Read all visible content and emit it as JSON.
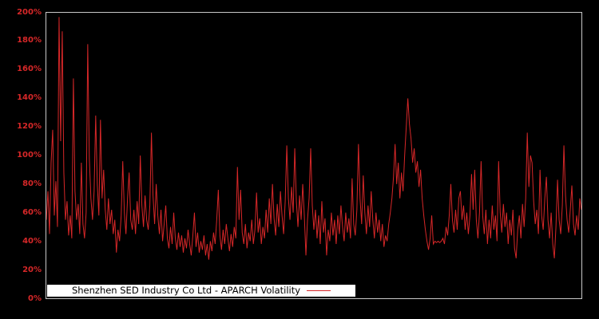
{
  "figure": {
    "background_color": "#000000",
    "axis_border_color": "#c8c8c8"
  },
  "legend": {
    "label": "Shenzhen SED Industry Co Ltd - APARCH Volatility",
    "line_sample_color": "#d62728",
    "background_color": "#ffffff"
  },
  "chart_data": {
    "type": "line",
    "title": "",
    "xlabel": "",
    "ylabel": "",
    "grid": false,
    "legend_position": "bottom-center-inside",
    "line_color": "#d62728",
    "tick_label_color": "#d62728",
    "ylim": [
      0,
      200
    ],
    "yticks": [
      "0%",
      "20%",
      "40%",
      "60%",
      "80%",
      "100%",
      "120%",
      "140%",
      "160%",
      "180%",
      "200%"
    ],
    "ytick_values": [
      0,
      20,
      40,
      60,
      80,
      100,
      120,
      140,
      160,
      180,
      200
    ],
    "x_axis_ticks": "none",
    "series": [
      {
        "name": "Shenzhen SED Industry Co Ltd - APARCH Volatility",
        "unit": "percent",
        "values": [
          55,
          75,
          45,
          95,
          118,
          58,
          82,
          50,
          197,
          110,
          187,
          88,
          55,
          68,
          44,
          58,
          42,
          154,
          75,
          55,
          66,
          45,
          95,
          52,
          42,
          60,
          178,
          98,
          70,
          55,
          75,
          128,
          80,
          58,
          125,
          70,
          90,
          62,
          48,
          70,
          52,
          62,
          45,
          55,
          32,
          48,
          40,
          58,
          96,
          60,
          45,
          70,
          88,
          55,
          48,
          62,
          45,
          68,
          52,
          100,
          65,
          50,
          72,
          55,
          48,
          65,
          116,
          72,
          52,
          80,
          58,
          45,
          62,
          40,
          52,
          65,
          42,
          35,
          50,
          38,
          60,
          42,
          34,
          46,
          36,
          44,
          32,
          42,
          35,
          48,
          38,
          30,
          44,
          60,
          36,
          46,
          32,
          40,
          34,
          44,
          30,
          38,
          27,
          40,
          33,
          46,
          38,
          55,
          76,
          44,
          34,
          48,
          38,
          52,
          42,
          33,
          45,
          36,
          50,
          42,
          92,
          55,
          76,
          46,
          38,
          52,
          35,
          46,
          40,
          55,
          38,
          48,
          74,
          46,
          56,
          38,
          50,
          42,
          62,
          46,
          70,
          52,
          80,
          56,
          44,
          66,
          50,
          75,
          58,
          45,
          68,
          107,
          70,
          55,
          78,
          60,
          105,
          68,
          50,
          72,
          55,
          80,
          58,
          30,
          55,
          70,
          105,
          65,
          48,
          62,
          42,
          58,
          38,
          68,
          46,
          56,
          30,
          48,
          40,
          60,
          44,
          55,
          38,
          58,
          45,
          65,
          50,
          40,
          60,
          46,
          56,
          42,
          84,
          52,
          44,
          62,
          108,
          70,
          52,
          86,
          60,
          45,
          65,
          50,
          75,
          55,
          42,
          60,
          46,
          55,
          40,
          52,
          36,
          44,
          40,
          52,
          60,
          70,
          85,
          108,
          80,
          95,
          70,
          88,
          75,
          100,
          120,
          140,
          122,
          112,
          95,
          105,
          88,
          96,
          78,
          90,
          70,
          58,
          48,
          40,
          34,
          42,
          58,
          38,
          40,
          39,
          40,
          39,
          40,
          42,
          38,
          50,
          44,
          58,
          80,
          55,
          46,
          62,
          48,
          70,
          75,
          55,
          65,
          48,
          60,
          45,
          58,
          87,
          62,
          90,
          55,
          42,
          60,
          96,
          58,
          45,
          62,
          38,
          55,
          42,
          65,
          48,
          58,
          40,
          96,
          60,
          46,
          66,
          50,
          60,
          38,
          55,
          44,
          62,
          35,
          28,
          48,
          58,
          42,
          66,
          50,
          70,
          116,
          78,
          100,
          95,
          68,
          52,
          62,
          45,
          90,
          58,
          48,
          70,
          85,
          55,
          42,
          60,
          38,
          28,
          50,
          83,
          55,
          45,
          65,
          107,
          72,
          55,
          46,
          62,
          79,
          52,
          44,
          58,
          48,
          70,
          62
        ]
      }
    ]
  }
}
